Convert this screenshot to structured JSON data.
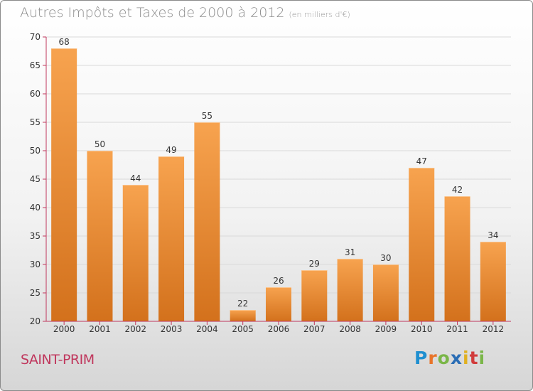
{
  "title": "Autres Impôts et Taxes de 2000 à 2012",
  "unit_note": "(en milliers d'€)",
  "city": "SAINT-PRIM",
  "logo": {
    "text": "Proxiti",
    "letters": [
      {
        "ch": "P",
        "color": "#1f8fd0"
      },
      {
        "ch": "r",
        "color": "#e8742a"
      },
      {
        "ch": "o",
        "color": "#7ab648"
      },
      {
        "ch": "x",
        "color": "#2a6db5"
      },
      {
        "ch": "i",
        "color": "#e0b020"
      },
      {
        "ch": "t",
        "color": "#d13c3c"
      },
      {
        "ch": "i",
        "color": "#7ab648"
      }
    ]
  },
  "colors": {
    "bar_top": "#f7a34f",
    "bar_bottom": "#d3711c",
    "axis": "#c0375d",
    "grid": "#d9d9d9"
  },
  "chart_data": {
    "type": "bar",
    "title": "Autres Impôts et Taxes de 2000 à 2012",
    "subtitle": "(en milliers d'€)",
    "categories": [
      "2000",
      "2001",
      "2002",
      "2003",
      "2004",
      "2005",
      "2006",
      "2007",
      "2008",
      "2009",
      "2010",
      "2011",
      "2012"
    ],
    "values": [
      68,
      50,
      44,
      49,
      55,
      22,
      26,
      29,
      31,
      30,
      47,
      42,
      34
    ],
    "xlabel": "",
    "ylabel": "",
    "ylim": [
      20,
      70
    ],
    "yticks": [
      20,
      25,
      30,
      35,
      40,
      45,
      50,
      55,
      60,
      65,
      70
    ],
    "grid": true,
    "data_labels": true
  }
}
